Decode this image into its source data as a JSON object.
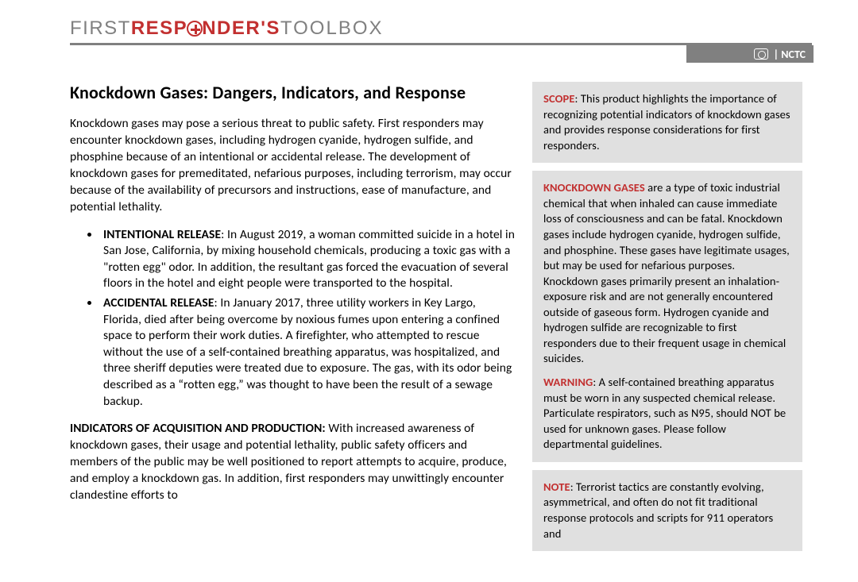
{
  "colors": {
    "accent_red": "#c23030",
    "rule_gray": "#808080",
    "sidebar_bg": "#e0e0e0",
    "text": "#000000",
    "page_bg": "#ffffff"
  },
  "brand": {
    "first": "FIRST",
    "responders_pre": "RESP",
    "responders_post": "NDER'S",
    "toolbox": "TOOLBOX",
    "nctc": "| NCTC"
  },
  "title": "Knockdown Gases: Dangers, Indicators, and Response",
  "intro": "Knockdown gases may pose a serious threat to public safety. First responders may encounter knockdown gases, including hydrogen cyanide, hydrogen sulfide, and phosphine because of an intentional or accidental release. The development of knockdown gases for premeditated, nefarious purposes, including terrorism, may occur because of the availability of precursors and instructions, ease of manufacture, and potential lethality.",
  "bullets": [
    {
      "label": "INTENTIONAL RELEASE",
      "text": ": In August 2019, a woman committed suicide in a hotel in San Jose, California, by mixing household chemicals, producing a toxic gas with a \"rotten egg\" odor. In addition, the resultant gas forced the evacuation of several floors in the hotel and eight people were transported to the hospital."
    },
    {
      "label": "ACCIDENTAL RELEASE",
      "text": ": In January 2017, three utility workers in Key Largo, Florida, died after being overcome by noxious fumes upon entering a confined space to perform their work duties. A firefighter, who attempted to rescue without the use of a self-contained breathing apparatus, was hospitalized, and three sheriff deputies were treated due to exposure. The gas, with its odor being described as a “rotten egg,” was thought to have been the result of a sewage backup."
    }
  ],
  "indicators": {
    "label": "INDICATORS OF ACQUISITION AND PRODUCTION: ",
    "text": "With increased awareness of knockdown gases, their usage and potential lethality, public safety officers and members of the public may be well positioned to report attempts to acquire, produce, and employ a knockdown gas. In addition, first responders may unwittingly encounter clandestine efforts to"
  },
  "sidebar": {
    "scope": {
      "lead": "SCOPE",
      "text": ": This product highlights the importance of recognizing potential indicators of knockdown gases and provides response considerations for first responders."
    },
    "kg": {
      "lead": "KNOCKDOWN GASES",
      "text": " are a type of toxic industrial chemical that when inhaled can cause immediate loss of consciousness and can be fatal. Knockdown gases include hydrogen cyanide, hydrogen sulfide, and phosphine. These gases have legitimate usages, but may be used for nefarious purposes. Knockdown gases primarily present an inhalation-exposure risk and are not generally encountered outside of gaseous form. Hydrogen cyanide and hydrogen sulfide are recognizable to first responders due to their frequent usage in chemical suicides."
    },
    "warning": {
      "lead": "WARNING",
      "text": ": A self-contained breathing apparatus must be worn in any suspected chemical release. Particulate respirators, such as N95, should NOT be used for unknown gases. Please follow departmental guidelines."
    },
    "note": {
      "lead": "NOTE",
      "text": ": Terrorist tactics are constantly evolving, asymmetrical, and often do not fit traditional response protocols and scripts for 911 operators and"
    }
  }
}
